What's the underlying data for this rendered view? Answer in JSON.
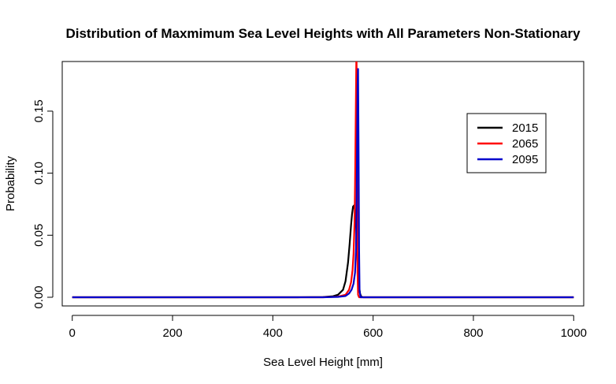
{
  "chart_data": {
    "type": "line",
    "title": "Distribution of Maxmimum Sea Level Heights with All Parameters Non-Stationary",
    "xlabel": "Sea Level Height [mm]",
    "ylabel": "Probability",
    "xlim": [
      -20,
      1020
    ],
    "ylim": [
      -0.007,
      0.19
    ],
    "x_ticks": [
      0,
      200,
      400,
      600,
      800,
      1000
    ],
    "x_tick_labels": [
      "0",
      "200",
      "400",
      "600",
      "800",
      "1000"
    ],
    "y_ticks": [
      0.0,
      0.05,
      0.1,
      0.15
    ],
    "y_tick_labels": [
      "0.00",
      "0.05",
      "0.10",
      "0.15"
    ],
    "grid": false,
    "legend_position": "top-right",
    "series": [
      {
        "name": "2015",
        "color": "#000000",
        "x": [
          0,
          100,
          200,
          300,
          400,
          450,
          500,
          520,
          530,
          540,
          545,
          550,
          553,
          556,
          558,
          560,
          562,
          564,
          566,
          568,
          570,
          572,
          574,
          576,
          578,
          580,
          590,
          600,
          700,
          800,
          900,
          1000
        ],
        "y": [
          0,
          0,
          0,
          0,
          0,
          0,
          0.0002,
          0.0008,
          0.002,
          0.006,
          0.013,
          0.028,
          0.042,
          0.058,
          0.067,
          0.073,
          0.074,
          0.07,
          0.058,
          0.04,
          0.022,
          0.009,
          0.003,
          0.0008,
          0.0002,
          0,
          0,
          0,
          0,
          0,
          0,
          0
        ]
      },
      {
        "name": "2065",
        "color": "#ff0000",
        "x": [
          0,
          100,
          200,
          300,
          400,
          500,
          530,
          545,
          552,
          556,
          559,
          561,
          563,
          564,
          565,
          566,
          566.5,
          567,
          568,
          569,
          570,
          572,
          580,
          600,
          700,
          800,
          900,
          1000
        ],
        "y": [
          0,
          0,
          0,
          0,
          0,
          0,
          0.0005,
          0.002,
          0.006,
          0.012,
          0.022,
          0.035,
          0.06,
          0.09,
          0.13,
          0.17,
          0.19,
          0.19,
          0.1,
          0.02,
          0.002,
          0,
          0,
          0,
          0,
          0,
          0,
          0
        ]
      },
      {
        "name": "2095",
        "color": "#0000cc",
        "x": [
          0,
          100,
          200,
          300,
          400,
          500,
          530,
          545,
          552,
          557,
          561,
          564,
          566,
          567,
          568,
          569,
          570,
          571,
          572,
          573,
          575,
          580,
          600,
          700,
          800,
          900,
          1000
        ],
        "y": [
          0,
          0,
          0,
          0,
          0,
          0,
          0.0003,
          0.001,
          0.003,
          0.006,
          0.011,
          0.02,
          0.04,
          0.07,
          0.12,
          0.17,
          0.184,
          0.12,
          0.04,
          0.005,
          0,
          0,
          0,
          0,
          0,
          0,
          0
        ]
      }
    ]
  }
}
